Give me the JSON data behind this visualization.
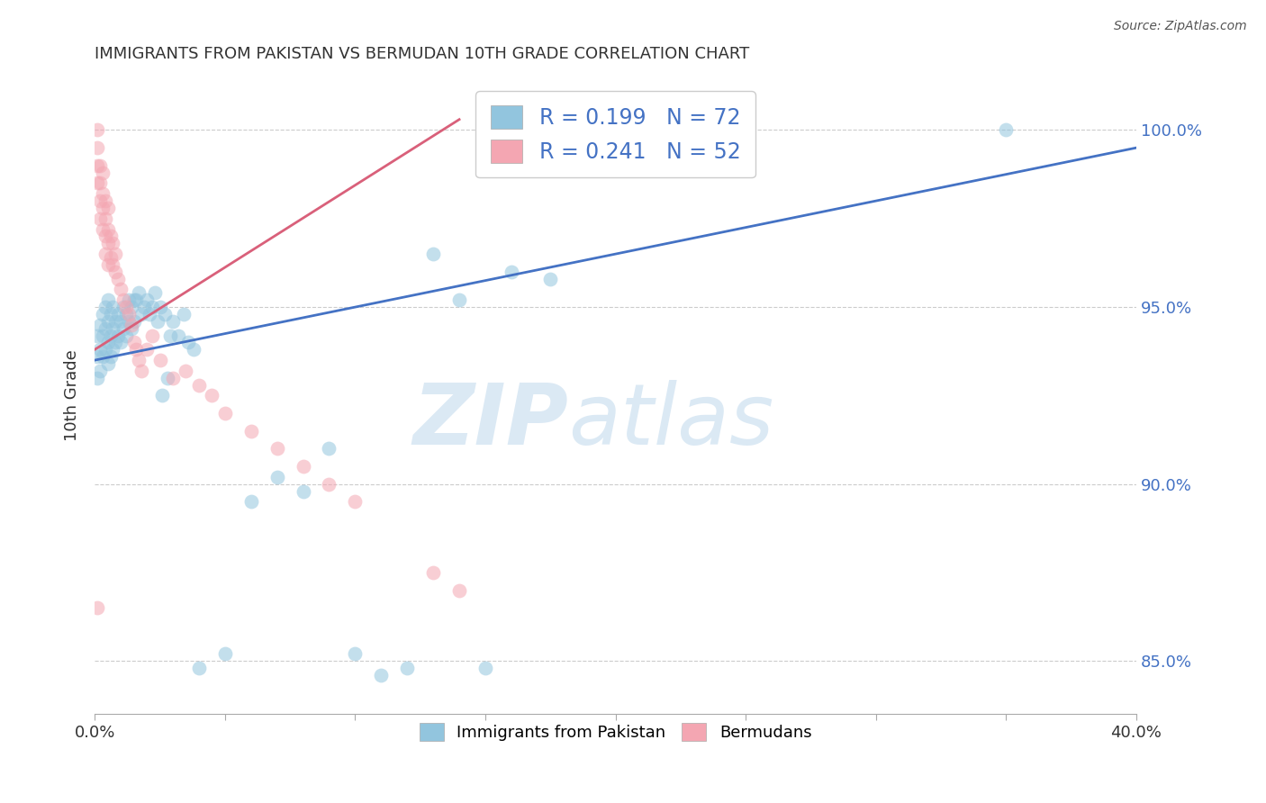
{
  "title": "IMMIGRANTS FROM PAKISTAN VS BERMUDAN 10TH GRADE CORRELATION CHART",
  "source": "Source: ZipAtlas.com",
  "ylabel": "10th Grade",
  "y_ticks": [
    85.0,
    90.0,
    95.0,
    100.0
  ],
  "y_tick_labels": [
    "85.0%",
    "90.0%",
    "95.0%",
    "100.0%"
  ],
  "x_ticks": [
    0.0,
    0.05,
    0.1,
    0.15,
    0.2,
    0.25,
    0.3,
    0.35,
    0.4
  ],
  "x_tick_labels": [
    "0.0%",
    "",
    "",
    "",
    "",
    "",
    "",
    "",
    "40.0%"
  ],
  "legend_bottom": [
    "Immigrants from Pakistan",
    "Bermudans"
  ],
  "blue_color": "#92c5de",
  "pink_color": "#f4a6b2",
  "blue_line_color": "#4472c4",
  "pink_line_color": "#d9607a",
  "blue_line_x0": 0.0,
  "blue_line_y0": 93.5,
  "blue_line_x1": 0.4,
  "blue_line_y1": 99.5,
  "pink_line_x0": 0.0,
  "pink_line_y0": 93.8,
  "pink_line_x1": 0.14,
  "pink_line_y1": 100.3,
  "blue_points_x": [
    0.001,
    0.001,
    0.001,
    0.002,
    0.002,
    0.002,
    0.003,
    0.003,
    0.003,
    0.004,
    0.004,
    0.004,
    0.005,
    0.005,
    0.005,
    0.005,
    0.006,
    0.006,
    0.006,
    0.007,
    0.007,
    0.007,
    0.008,
    0.008,
    0.009,
    0.009,
    0.01,
    0.01,
    0.011,
    0.011,
    0.012,
    0.012,
    0.013,
    0.013,
    0.014,
    0.014,
    0.015,
    0.015,
    0.016,
    0.017,
    0.018,
    0.019,
    0.02,
    0.021,
    0.022,
    0.023,
    0.024,
    0.025,
    0.026,
    0.027,
    0.028,
    0.029,
    0.03,
    0.032,
    0.034,
    0.036,
    0.038,
    0.04,
    0.05,
    0.06,
    0.07,
    0.08,
    0.09,
    0.1,
    0.11,
    0.12,
    0.13,
    0.14,
    0.15,
    0.16,
    0.175,
    0.35
  ],
  "blue_points_y": [
    94.2,
    93.6,
    93.0,
    94.5,
    93.8,
    93.2,
    94.8,
    94.2,
    93.6,
    95.0,
    94.4,
    93.8,
    95.2,
    94.6,
    94.0,
    93.4,
    94.8,
    94.2,
    93.6,
    95.0,
    94.4,
    93.8,
    94.6,
    94.0,
    94.8,
    94.2,
    94.6,
    94.0,
    95.0,
    94.4,
    94.8,
    94.2,
    95.2,
    94.6,
    95.0,
    94.4,
    95.2,
    94.6,
    95.2,
    95.4,
    94.8,
    95.0,
    95.2,
    94.8,
    95.0,
    95.4,
    94.6,
    95.0,
    92.5,
    94.8,
    93.0,
    94.2,
    94.6,
    94.2,
    94.8,
    94.0,
    93.8,
    84.8,
    85.2,
    89.5,
    90.2,
    89.8,
    91.0,
    85.2,
    84.6,
    84.8,
    96.5,
    95.2,
    84.8,
    96.0,
    95.8,
    100.0
  ],
  "pink_points_x": [
    0.001,
    0.001,
    0.001,
    0.001,
    0.002,
    0.002,
    0.002,
    0.002,
    0.003,
    0.003,
    0.003,
    0.003,
    0.004,
    0.004,
    0.004,
    0.004,
    0.005,
    0.005,
    0.005,
    0.005,
    0.006,
    0.006,
    0.007,
    0.007,
    0.008,
    0.008,
    0.009,
    0.01,
    0.011,
    0.012,
    0.013,
    0.014,
    0.015,
    0.016,
    0.017,
    0.018,
    0.02,
    0.022,
    0.025,
    0.03,
    0.035,
    0.04,
    0.045,
    0.05,
    0.06,
    0.07,
    0.08,
    0.09,
    0.1,
    0.13,
    0.14,
    0.001
  ],
  "pink_points_y": [
    100.0,
    99.5,
    99.0,
    98.5,
    99.0,
    98.5,
    98.0,
    97.5,
    98.8,
    98.2,
    97.8,
    97.2,
    98.0,
    97.5,
    97.0,
    96.5,
    97.8,
    97.2,
    96.8,
    96.2,
    97.0,
    96.4,
    96.8,
    96.2,
    96.5,
    96.0,
    95.8,
    95.5,
    95.2,
    95.0,
    94.8,
    94.5,
    94.0,
    93.8,
    93.5,
    93.2,
    93.8,
    94.2,
    93.5,
    93.0,
    93.2,
    92.8,
    92.5,
    92.0,
    91.5,
    91.0,
    90.5,
    90.0,
    89.5,
    87.5,
    87.0,
    86.5
  ]
}
